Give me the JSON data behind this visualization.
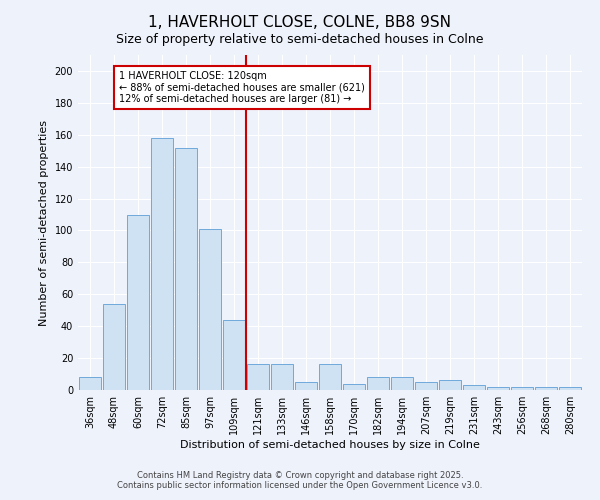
{
  "title": "1, HAVERHOLT CLOSE, COLNE, BB8 9SN",
  "subtitle": "Size of property relative to semi-detached houses in Colne",
  "xlabel": "Distribution of semi-detached houses by size in Colne",
  "ylabel": "Number of semi-detached properties",
  "categories": [
    "36sqm",
    "48sqm",
    "60sqm",
    "72sqm",
    "85sqm",
    "97sqm",
    "109sqm",
    "121sqm",
    "133sqm",
    "146sqm",
    "158sqm",
    "170sqm",
    "182sqm",
    "194sqm",
    "207sqm",
    "219sqm",
    "231sqm",
    "243sqm",
    "256sqm",
    "268sqm",
    "280sqm"
  ],
  "values": [
    8,
    54,
    110,
    158,
    152,
    101,
    44,
    16,
    16,
    5,
    16,
    4,
    8,
    8,
    5,
    6,
    3,
    2,
    2,
    2,
    2
  ],
  "bar_color": "#cfe2f3",
  "bar_edge_color": "#6fa8dc",
  "vline_color": "#cc0000",
  "annotation_title": "1 HAVERHOLT CLOSE: 120sqm",
  "annotation_line1": "← 88% of semi-detached houses are smaller (621)",
  "annotation_line2": "12% of semi-detached houses are larger (81) →",
  "annotation_box_color": "#ffffff",
  "annotation_box_edge": "#cc0000",
  "ylim": [
    0,
    210
  ],
  "yticks": [
    0,
    20,
    40,
    60,
    80,
    100,
    120,
    140,
    160,
    180,
    200
  ],
  "footer1": "Contains HM Land Registry data © Crown copyright and database right 2025.",
  "footer2": "Contains public sector information licensed under the Open Government Licence v3.0.",
  "bg_color": "#eef2fb",
  "grid_color": "#ffffff",
  "title_fontsize": 11,
  "subtitle_fontsize": 9,
  "ylabel_fontsize": 8,
  "xlabel_fontsize": 8,
  "tick_fontsize": 7,
  "footer_fontsize": 6,
  "ann_fontsize": 7
}
